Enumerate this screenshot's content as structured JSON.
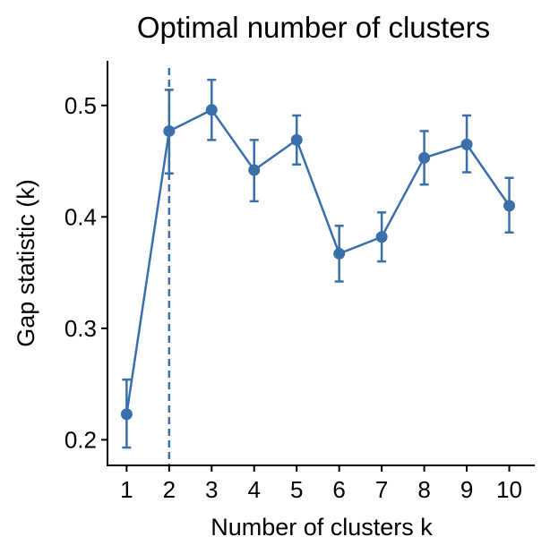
{
  "chart_data": {
    "type": "line",
    "title": "Optimal number of clusters",
    "xlabel": "Number of clusters k",
    "ylabel": "Gap statistic (k)",
    "x": [
      1,
      2,
      3,
      4,
      5,
      6,
      7,
      8,
      9,
      10
    ],
    "x_tick_labels": [
      "1",
      "2",
      "3",
      "4",
      "5",
      "6",
      "7",
      "8",
      "9",
      "10"
    ],
    "series": [
      {
        "values": [
          0.223,
          0.477,
          0.496,
          0.442,
          0.469,
          0.367,
          0.382,
          0.453,
          0.465,
          0.41
        ],
        "error_lower": [
          0.193,
          0.439,
          0.469,
          0.414,
          0.447,
          0.342,
          0.36,
          0.429,
          0.44,
          0.386
        ],
        "error_upper": [
          0.254,
          0.514,
          0.523,
          0.469,
          0.491,
          0.392,
          0.404,
          0.477,
          0.491,
          0.435
        ]
      }
    ],
    "y_ticks": [
      0.2,
      0.3,
      0.4,
      0.5
    ],
    "y_tick_labels": [
      "0.2",
      "0.3",
      "0.4",
      "0.5"
    ],
    "xlim": [
      0.55,
      10.6
    ],
    "ylim": [
      0.177,
      0.54
    ],
    "optimal_k": 2,
    "grid": false,
    "colors": {
      "series": "#3a6fac",
      "axis": "#000000"
    }
  }
}
